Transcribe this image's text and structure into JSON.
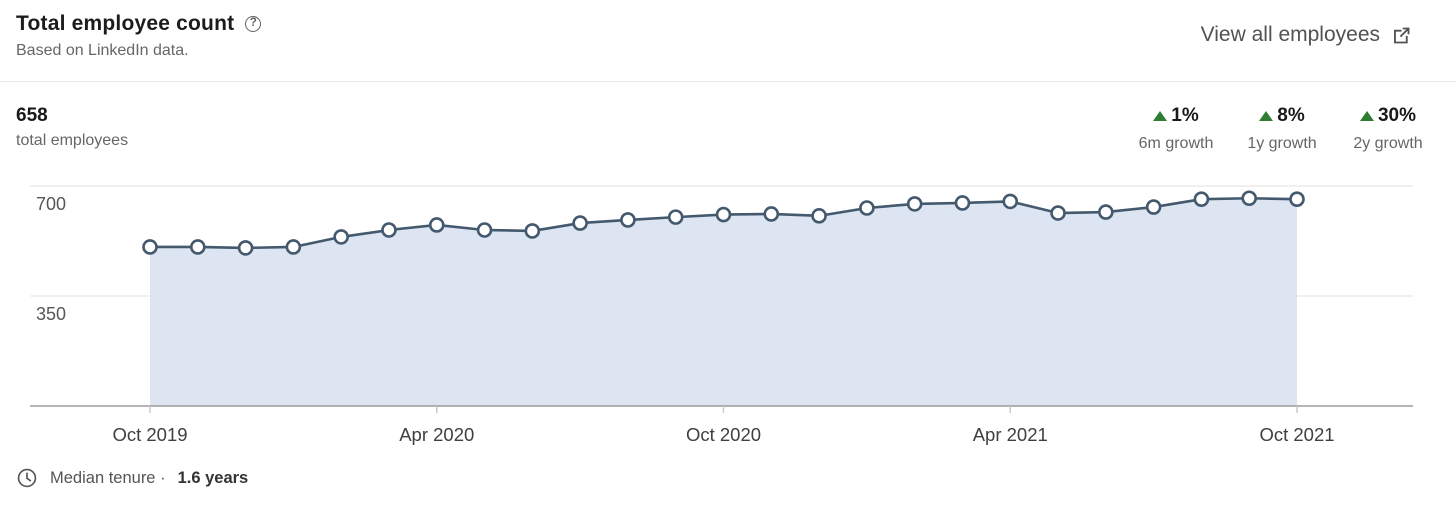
{
  "header": {
    "title": "Total employee count",
    "help_glyph": "?",
    "subtitle": "Based on LinkedIn data.",
    "view_all_label": "View all employees"
  },
  "stats": {
    "value": "658",
    "label": "total employees",
    "growth": [
      {
        "pct": "1%",
        "label": "6m growth"
      },
      {
        "pct": "8%",
        "label": "1y growth"
      },
      {
        "pct": "30%",
        "label": "2y growth"
      }
    ],
    "growth_color": "#2e7d32"
  },
  "chart_data": {
    "type": "area",
    "title": "Total employee count",
    "x": [
      "Oct 2019",
      "Nov 2019",
      "Dec 2019",
      "Jan 2020",
      "Feb 2020",
      "Mar 2020",
      "Apr 2020",
      "May 2020",
      "Jun 2020",
      "Jul 2020",
      "Aug 2020",
      "Sep 2020",
      "Oct 2020",
      "Nov 2020",
      "Dec 2020",
      "Jan 2021",
      "Feb 2021",
      "Mar 2021",
      "Apr 2021",
      "May 2021",
      "Jun 2021",
      "Jul 2021",
      "Aug 2021",
      "Sep 2021",
      "Oct 2021"
    ],
    "values": [
      506,
      506,
      503,
      506,
      538,
      560,
      576,
      560,
      557,
      582,
      592,
      601,
      609,
      611,
      605,
      630,
      643,
      646,
      651,
      614,
      617,
      633,
      658,
      661,
      658
    ],
    "xtick_labels": [
      "Oct 2019",
      "Apr 2020",
      "Oct 2020",
      "Apr 2021",
      "Oct 2021"
    ],
    "yticks": [
      700,
      350
    ],
    "ylim": [
      0,
      786
    ],
    "grid": true,
    "markers": true,
    "legend": "none",
    "xlabel": "",
    "ylabel": "",
    "colors": {
      "line": "#44596e",
      "fill": "#dce5f1",
      "marker_fill": "#ffffff",
      "grid": "#e2e2e2",
      "axis": "#9b9b9b",
      "tick": "#c9c9c9",
      "tick_label": "#3f3f3f",
      "ytick_label": "#575757"
    }
  },
  "footer": {
    "label": "Median tenure ·",
    "value": "1.6 years"
  }
}
